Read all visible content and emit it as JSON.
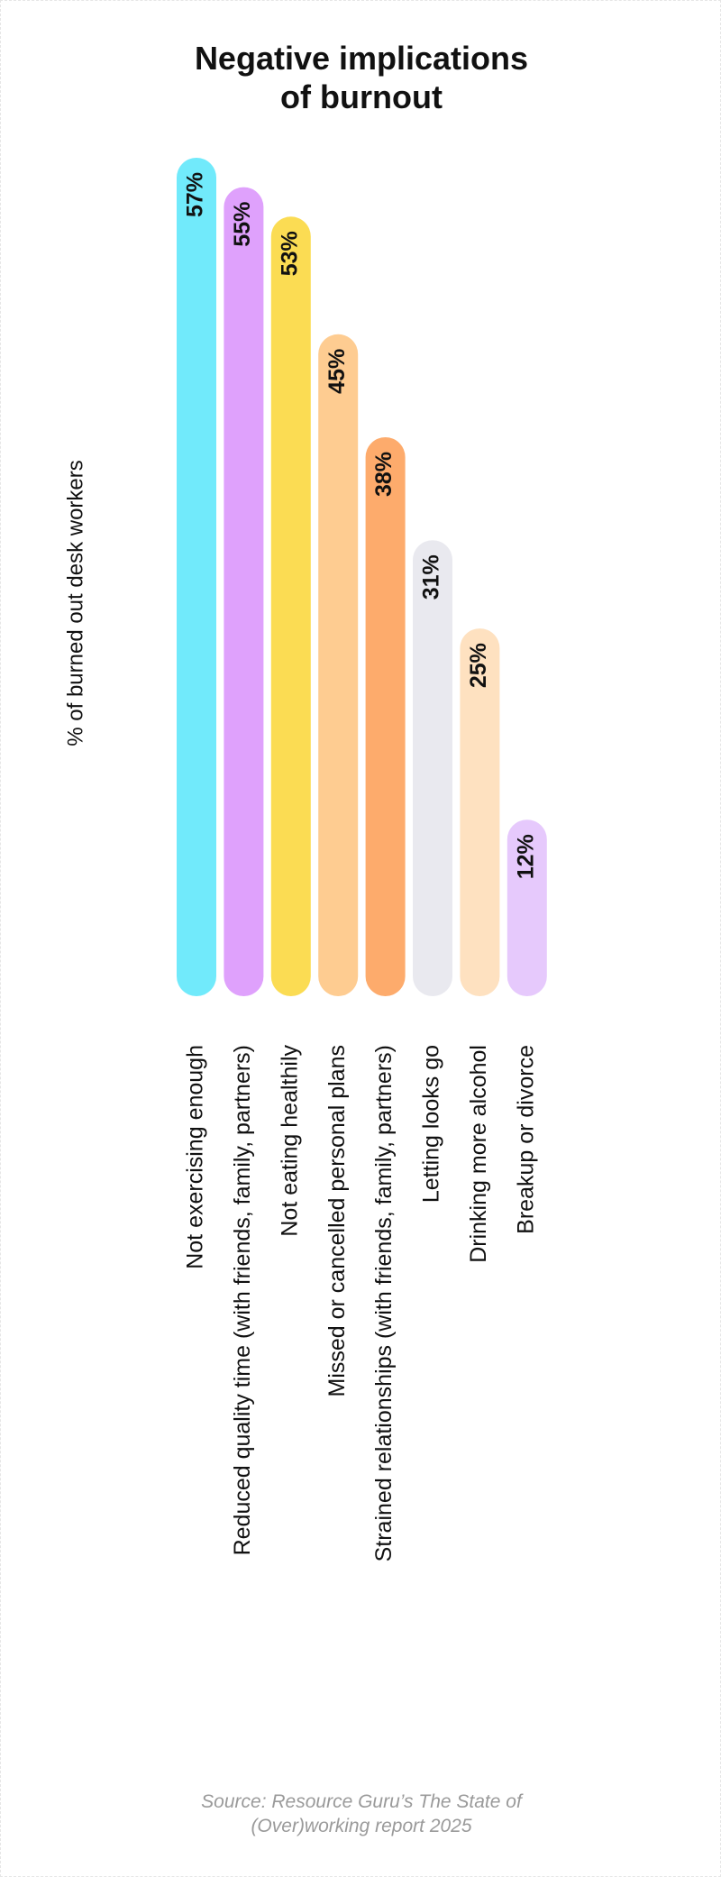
{
  "chart_data": {
    "type": "bar",
    "title": [
      "Negative implications",
      "of burnout"
    ],
    "ylabel": "% of burned out desk workers",
    "xlabel": "",
    "ylim": [
      0,
      57
    ],
    "grid": false,
    "categories": [
      "Not exercising enough",
      "Reduced quality time (with friends, family, partners)",
      "Not eating healthily",
      "Missed or cancelled personal plans",
      "Strained relationships (with friends, family, partners)",
      "Letting looks go",
      "Drinking more alcohol",
      "Breakup or divorce"
    ],
    "values": [
      57,
      55,
      53,
      45,
      38,
      31,
      25,
      12
    ],
    "value_labels": [
      "57%",
      "55%",
      "53%",
      "45%",
      "38%",
      "31%",
      "25%",
      "12%"
    ],
    "colors": [
      "#71EAFB",
      "#DFA1FC",
      "#FBDC53",
      "#FECC91",
      "#FDAB6C",
      "#E9E9EF",
      "#FEE1C0",
      "#E6C9FC"
    ]
  },
  "source": [
    "Source: Resource Guru’s The State of",
    "(Over)working report 2025"
  ]
}
